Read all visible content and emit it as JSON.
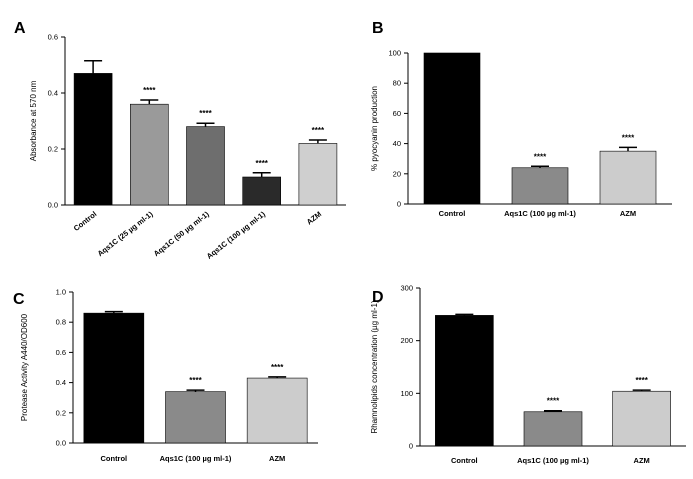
{
  "chart_data": [
    {
      "panel": "A",
      "type": "bar",
      "ylabel": "Absorbance at 570 nm",
      "ylim": [
        0,
        0.6
      ],
      "yticks": [
        "0.0",
        "0.2",
        "0.4",
        "0.6"
      ],
      "categories": [
        "Control",
        "Aqs1C (25 µg ml-1)",
        "Aqs1C (50 µg ml-1)",
        "Aqs1C (100 µg ml-1)",
        "AZM"
      ],
      "values": [
        0.47,
        0.36,
        0.28,
        0.1,
        0.22
      ],
      "errors": [
        0.045,
        0.015,
        0.012,
        0.015,
        0.012
      ],
      "significance": [
        "",
        "****",
        "****",
        "****",
        "****"
      ],
      "bar_fills": [
        "#000000",
        "#9a9a9a",
        "#6e6e6e",
        "#2a2a2a",
        "#cfcfcf"
      ],
      "category_rotation": "diagonal"
    },
    {
      "panel": "B",
      "type": "bar",
      "ylabel": "% pyocyanin production",
      "ylim": [
        0,
        100
      ],
      "yticks": [
        "0",
        "20",
        "40",
        "60",
        "80",
        "100"
      ],
      "categories": [
        "Control",
        "Aqs1C (100 µg ml-1)",
        "AZM"
      ],
      "values": [
        100,
        24,
        35
      ],
      "errors": [
        0,
        1,
        2.5
      ],
      "significance": [
        "",
        "****",
        "****"
      ],
      "bar_fills": [
        "#000000",
        "#8a8a8a",
        "#cccccc"
      ],
      "category_rotation": "none"
    },
    {
      "panel": "C",
      "type": "bar",
      "ylabel": "Protease Activity A440/OD600",
      "ylim": [
        0,
        1.0
      ],
      "yticks": [
        "0.0",
        "0.2",
        "0.4",
        "0.6",
        "0.8",
        "1.0"
      ],
      "categories": [
        "Control",
        "Aqs1C (100 µg ml-1)",
        "AZM"
      ],
      "values": [
        0.86,
        0.34,
        0.43
      ],
      "errors": [
        0.01,
        0.01,
        0.008
      ],
      "significance": [
        "",
        "****",
        "****"
      ],
      "bar_fills": [
        "#000000",
        "#8a8a8a",
        "#cccccc"
      ],
      "category_rotation": "none"
    },
    {
      "panel": "D",
      "type": "bar",
      "ylabel": "Rhamnolipids concentration (µg ml-1)",
      "ylim": [
        0,
        300
      ],
      "yticks": [
        "0",
        "100",
        "200",
        "300"
      ],
      "categories": [
        "Control",
        "Aqs1C (100 µg ml-1)",
        "AZM"
      ],
      "values": [
        248,
        65,
        104
      ],
      "errors": [
        2,
        2,
        2
      ],
      "significance": [
        "",
        "****",
        "****"
      ],
      "bar_fills": [
        "#000000",
        "#8a8a8a",
        "#cccccc"
      ],
      "category_rotation": "none"
    }
  ]
}
